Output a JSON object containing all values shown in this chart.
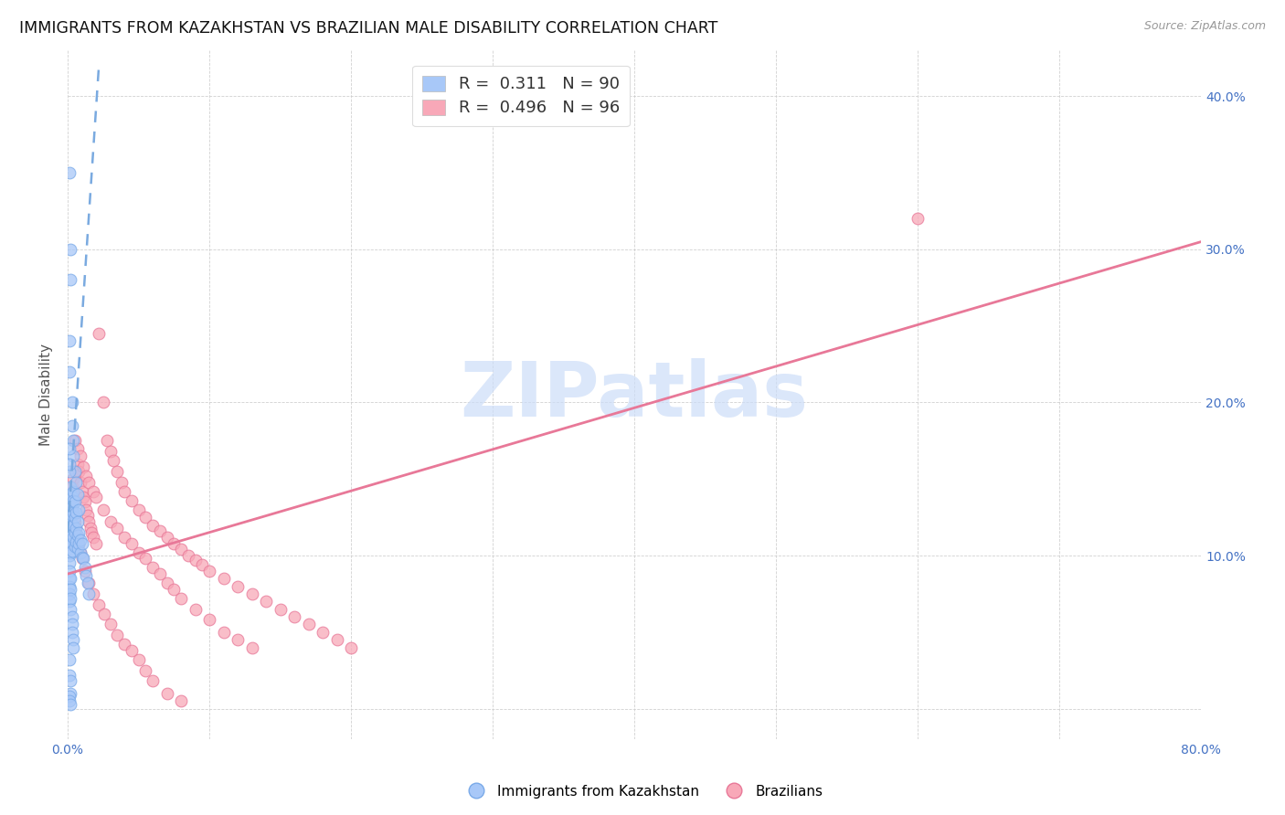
{
  "title": "IMMIGRANTS FROM KAZAKHSTAN VS BRAZILIAN MALE DISABILITY CORRELATION CHART",
  "source": "Source: ZipAtlas.com",
  "ylabel": "Male Disability",
  "xlim": [
    0.0,
    0.8
  ],
  "ylim": [
    -0.02,
    0.43
  ],
  "blue_color": "#a8c8f8",
  "blue_edge_color": "#7aaae8",
  "pink_color": "#f8a8b8",
  "pink_edge_color": "#e87898",
  "blue_line_color": "#7aaae0",
  "pink_line_color": "#e87898",
  "watermark_text": "ZIPatlas",
  "watermark_color": "#ccddf8",
  "title_fontsize": 12.5,
  "tick_fontsize": 10,
  "ylabel_fontsize": 11,
  "legend_fontsize": 13,
  "blue_line_x0": 0.0,
  "blue_line_x1": 0.022,
  "blue_line_y0": 0.115,
  "blue_line_y1": 0.42,
  "pink_line_x0": 0.0,
  "pink_line_x1": 0.8,
  "pink_line_y0": 0.088,
  "pink_line_y1": 0.305,
  "blue_scatter_x": [
    0.001,
    0.001,
    0.001,
    0.001,
    0.001,
    0.001,
    0.001,
    0.001,
    0.002,
    0.002,
    0.002,
    0.002,
    0.002,
    0.002,
    0.002,
    0.002,
    0.002,
    0.003,
    0.003,
    0.003,
    0.003,
    0.003,
    0.003,
    0.003,
    0.004,
    0.004,
    0.004,
    0.004,
    0.004,
    0.005,
    0.005,
    0.005,
    0.005,
    0.006,
    0.006,
    0.006,
    0.007,
    0.007,
    0.007,
    0.008,
    0.008,
    0.009,
    0.009,
    0.01,
    0.01,
    0.011,
    0.012,
    0.013,
    0.014,
    0.015,
    0.001,
    0.001,
    0.001,
    0.001,
    0.001,
    0.001,
    0.002,
    0.002,
    0.002,
    0.002,
    0.003,
    0.003,
    0.003,
    0.004,
    0.004,
    0.001,
    0.002,
    0.002,
    0.001,
    0.001,
    0.003,
    0.003,
    0.004,
    0.004,
    0.005,
    0.006,
    0.007,
    0.008,
    0.001,
    0.001,
    0.002,
    0.002,
    0.001,
    0.001,
    0.002,
    0.001,
    0.001,
    0.001
  ],
  "blue_scatter_y": [
    0.135,
    0.13,
    0.125,
    0.12,
    0.115,
    0.11,
    0.105,
    0.1,
    0.145,
    0.14,
    0.135,
    0.128,
    0.122,
    0.118,
    0.112,
    0.108,
    0.102,
    0.138,
    0.132,
    0.126,
    0.12,
    0.114,
    0.108,
    0.103,
    0.142,
    0.136,
    0.128,
    0.12,
    0.112,
    0.135,
    0.125,
    0.115,
    0.106,
    0.128,
    0.118,
    0.109,
    0.122,
    0.113,
    0.105,
    0.115,
    0.108,
    0.11,
    0.102,
    0.108,
    0.099,
    0.098,
    0.092,
    0.087,
    0.082,
    0.075,
    0.095,
    0.09,
    0.085,
    0.08,
    0.075,
    0.07,
    0.085,
    0.078,
    0.072,
    0.065,
    0.06,
    0.055,
    0.05,
    0.045,
    0.04,
    0.35,
    0.3,
    0.28,
    0.24,
    0.22,
    0.2,
    0.185,
    0.175,
    0.165,
    0.155,
    0.148,
    0.14,
    0.13,
    0.032,
    0.022,
    0.018,
    0.01,
    0.008,
    0.005,
    0.003,
    0.155,
    0.16,
    0.17
  ],
  "pink_scatter_x": [
    0.003,
    0.004,
    0.005,
    0.006,
    0.007,
    0.008,
    0.009,
    0.01,
    0.011,
    0.012,
    0.013,
    0.014,
    0.015,
    0.016,
    0.017,
    0.018,
    0.02,
    0.022,
    0.025,
    0.028,
    0.03,
    0.032,
    0.035,
    0.038,
    0.04,
    0.045,
    0.05,
    0.055,
    0.06,
    0.065,
    0.07,
    0.075,
    0.08,
    0.085,
    0.09,
    0.095,
    0.1,
    0.11,
    0.12,
    0.13,
    0.14,
    0.15,
    0.16,
    0.17,
    0.18,
    0.19,
    0.2,
    0.6,
    0.005,
    0.007,
    0.009,
    0.011,
    0.013,
    0.015,
    0.018,
    0.02,
    0.025,
    0.03,
    0.035,
    0.04,
    0.045,
    0.05,
    0.055,
    0.06,
    0.065,
    0.07,
    0.075,
    0.08,
    0.09,
    0.1,
    0.11,
    0.12,
    0.13,
    0.003,
    0.004,
    0.005,
    0.006,
    0.007,
    0.008,
    0.009,
    0.01,
    0.012,
    0.015,
    0.018,
    0.022,
    0.026,
    0.03,
    0.035,
    0.04,
    0.045,
    0.05,
    0.055,
    0.06,
    0.07,
    0.08
  ],
  "pink_scatter_y": [
    0.145,
    0.15,
    0.155,
    0.155,
    0.16,
    0.155,
    0.148,
    0.142,
    0.138,
    0.135,
    0.13,
    0.126,
    0.122,
    0.118,
    0.115,
    0.112,
    0.108,
    0.245,
    0.2,
    0.175,
    0.168,
    0.162,
    0.155,
    0.148,
    0.142,
    0.136,
    0.13,
    0.125,
    0.12,
    0.116,
    0.112,
    0.108,
    0.104,
    0.1,
    0.097,
    0.094,
    0.09,
    0.085,
    0.08,
    0.075,
    0.07,
    0.065,
    0.06,
    0.055,
    0.05,
    0.045,
    0.04,
    0.32,
    0.175,
    0.17,
    0.165,
    0.158,
    0.152,
    0.148,
    0.142,
    0.138,
    0.13,
    0.122,
    0.118,
    0.112,
    0.108,
    0.102,
    0.098,
    0.092,
    0.088,
    0.082,
    0.078,
    0.072,
    0.065,
    0.058,
    0.05,
    0.045,
    0.04,
    0.132,
    0.128,
    0.122,
    0.118,
    0.112,
    0.108,
    0.102,
    0.098,
    0.09,
    0.082,
    0.075,
    0.068,
    0.062,
    0.055,
    0.048,
    0.042,
    0.038,
    0.032,
    0.025,
    0.018,
    0.01,
    0.005
  ]
}
